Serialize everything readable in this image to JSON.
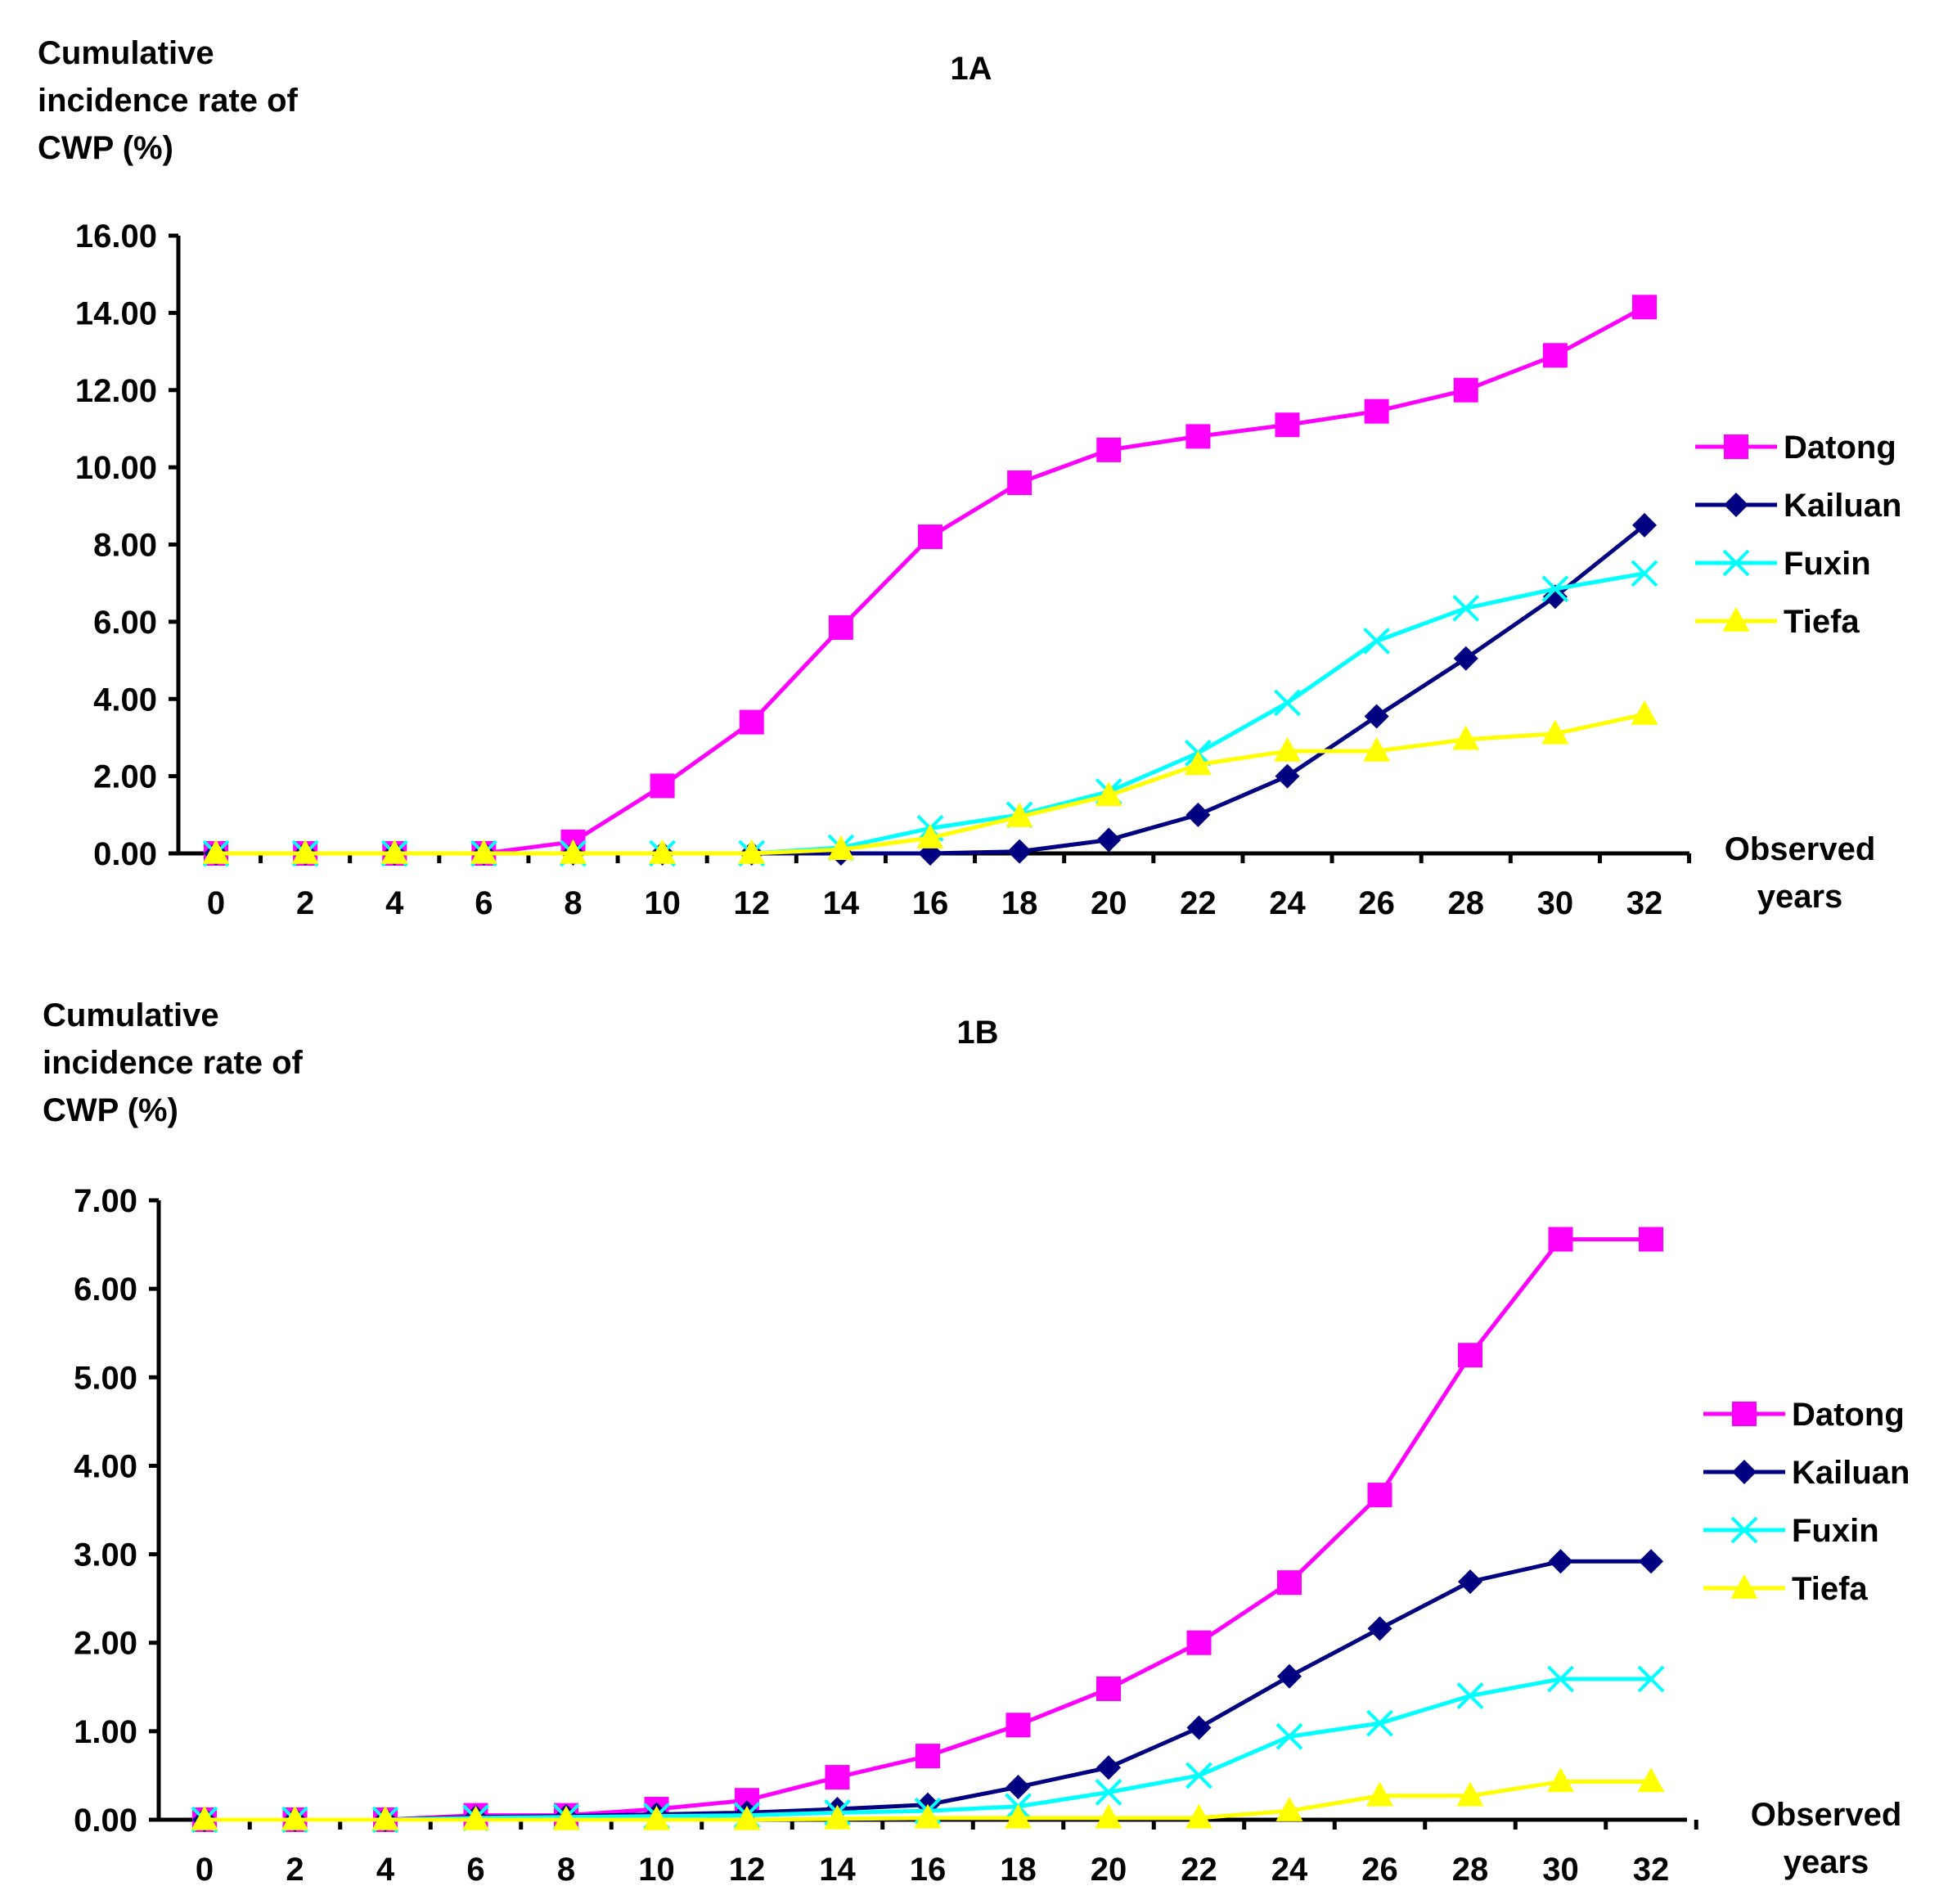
{
  "chart_data": [
    {
      "id": "1A",
      "type": "line",
      "title": "1A",
      "ylabel_lines": [
        "Cumulative",
        "incidence rate of",
        "CWP (%)"
      ],
      "xlabel_lines": [
        "Observed",
        "years"
      ],
      "categories": [
        "0",
        "2",
        "4",
        "6",
        "8",
        "10",
        "12",
        "14",
        "16",
        "18",
        "20",
        "22",
        "24",
        "26",
        "28",
        "30",
        "32"
      ],
      "ylim": [
        0,
        16
      ],
      "yticks": [
        "0.00",
        "2.00",
        "4.00",
        "6.00",
        "8.00",
        "10.00",
        "12.00",
        "14.00",
        "16.00"
      ],
      "grid": false,
      "legend_position": "right",
      "series": [
        {
          "name": "Datong",
          "color": "#FF00FF",
          "marker": "square",
          "values": [
            0,
            0,
            0,
            0,
            0.3,
            1.75,
            3.4,
            5.85,
            8.2,
            9.6,
            10.45,
            10.8,
            11.1,
            11.45,
            12.0,
            12.9,
            14.15
          ]
        },
        {
          "name": "Kailuan",
          "color": "#000080",
          "marker": "diamond",
          "values": [
            0,
            0,
            0,
            0,
            0,
            0,
            0,
            0,
            0,
            0.05,
            0.35,
            1.0,
            2.0,
            3.55,
            5.05,
            6.65,
            8.5
          ]
        },
        {
          "name": "Fuxin",
          "color": "#00FFFF",
          "marker": "x",
          "values": [
            0,
            0,
            0,
            0,
            0,
            0,
            0,
            0.15,
            0.65,
            1.0,
            1.6,
            2.6,
            3.9,
            5.5,
            6.35,
            6.85,
            7.25
          ]
        },
        {
          "name": "Tiefa",
          "color": "#FFFF00",
          "marker": "triangle",
          "values": [
            0,
            0,
            0,
            0,
            0,
            0,
            0,
            0.1,
            0.4,
            0.95,
            1.5,
            2.3,
            2.65,
            2.65,
            2.95,
            3.1,
            3.6
          ]
        }
      ]
    },
    {
      "id": "1B",
      "type": "line",
      "title": "1B",
      "ylabel_lines": [
        "Cumulative",
        "incidence rate of",
        "CWP (%)"
      ],
      "xlabel_lines": [
        "Observed",
        "years"
      ],
      "categories": [
        "0",
        "2",
        "4",
        "6",
        "8",
        "10",
        "12",
        "14",
        "16",
        "18",
        "20",
        "22",
        "24",
        "26",
        "28",
        "30",
        "32"
      ],
      "ylim": [
        0,
        7
      ],
      "yticks": [
        "0.00",
        "1.00",
        "2.00",
        "3.00",
        "4.00",
        "5.00",
        "6.00",
        "7.00"
      ],
      "grid": false,
      "legend_position": "right",
      "series": [
        {
          "name": "Datong",
          "color": "#FF00FF",
          "marker": "square",
          "values": [
            0,
            0,
            0,
            0.05,
            0.05,
            0.12,
            0.22,
            0.48,
            0.72,
            1.07,
            1.48,
            2.0,
            2.68,
            3.67,
            5.25,
            6.56,
            6.56
          ]
        },
        {
          "name": "Kailuan",
          "color": "#000080",
          "marker": "diamond",
          "values": [
            0,
            0,
            0,
            0.03,
            0.04,
            0.06,
            0.08,
            0.12,
            0.17,
            0.37,
            0.59,
            1.04,
            1.62,
            2.16,
            2.69,
            2.92,
            2.92
          ]
        },
        {
          "name": "Fuxin",
          "color": "#00FFFF",
          "marker": "x",
          "values": [
            0,
            0,
            0,
            0.02,
            0.03,
            0.04,
            0.05,
            0.08,
            0.1,
            0.15,
            0.31,
            0.5,
            0.94,
            1.09,
            1.4,
            1.59,
            1.59
          ]
        },
        {
          "name": "Tiefa",
          "color": "#FFFF00",
          "marker": "triangle",
          "values": [
            0,
            0,
            0,
            0,
            0,
            0,
            0,
            0.01,
            0.02,
            0.02,
            0.02,
            0.02,
            0.1,
            0.27,
            0.27,
            0.43,
            0.43
          ]
        }
      ]
    }
  ]
}
